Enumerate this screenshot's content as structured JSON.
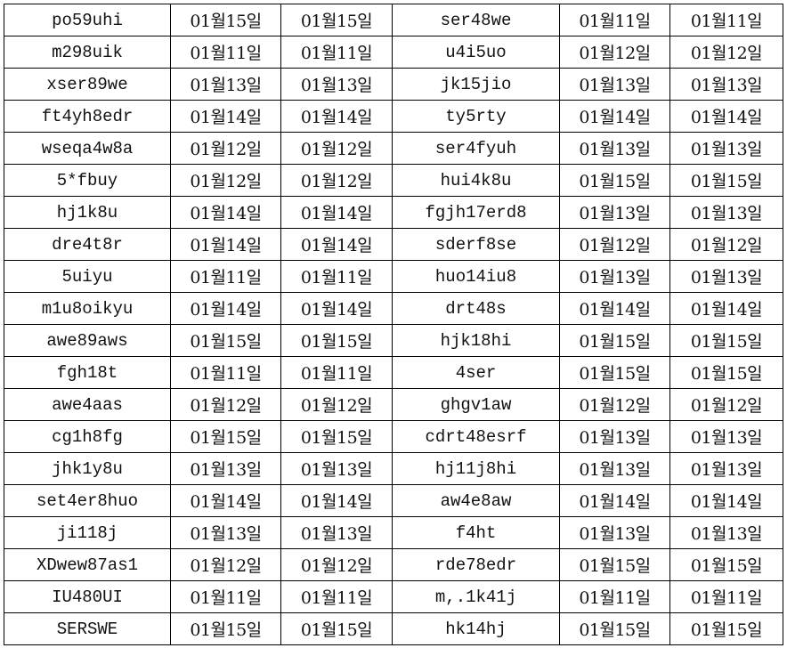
{
  "rows": [
    {
      "code1": "po59uhi",
      "d1": "01월15일",
      "d2": "01월15일",
      "code2": "ser48we",
      "d3": "01월11일",
      "d4": "01월11일"
    },
    {
      "code1": "m298uik",
      "d1": "01월11일",
      "d2": "01월11일",
      "code2": "u4i5uo",
      "d3": "01월12일",
      "d4": "01월12일"
    },
    {
      "code1": "xser89we",
      "d1": "01월13일",
      "d2": "01월13일",
      "code2": "jk15jio",
      "d3": "01월13일",
      "d4": "01월13일"
    },
    {
      "code1": "ft4yh8edr",
      "d1": "01월14일",
      "d2": "01월14일",
      "code2": "ty5rty",
      "d3": "01월14일",
      "d4": "01월14일"
    },
    {
      "code1": "wseqa4w8a",
      "d1": "01월12일",
      "d2": "01월12일",
      "code2": "ser4fyuh",
      "d3": "01월13일",
      "d4": "01월13일"
    },
    {
      "code1": "5*fbuy",
      "d1": "01월12일",
      "d2": "01월12일",
      "code2": "hui4k8u",
      "d3": "01월15일",
      "d4": "01월15일"
    },
    {
      "code1": "hj1k8u",
      "d1": "01월14일",
      "d2": "01월14일",
      "code2": "fgjh17erd8",
      "d3": "01월13일",
      "d4": "01월13일"
    },
    {
      "code1": "dre4t8r",
      "d1": "01월14일",
      "d2": "01월14일",
      "code2": "sderf8se",
      "d3": "01월12일",
      "d4": "01월12일"
    },
    {
      "code1": "5uiyu",
      "d1": "01월11일",
      "d2": "01월11일",
      "code2": "huo14iu8",
      "d3": "01월13일",
      "d4": "01월13일"
    },
    {
      "code1": "m1u8oikyu",
      "d1": "01월14일",
      "d2": "01월14일",
      "code2": "drt48s",
      "d3": "01월14일",
      "d4": "01월14일"
    },
    {
      "code1": "awe89aws",
      "d1": "01월15일",
      "d2": "01월15일",
      "code2": "hjk18hi",
      "d3": "01월15일",
      "d4": "01월15일"
    },
    {
      "code1": "fgh18t",
      "d1": "01월11일",
      "d2": "01월11일",
      "code2": "4ser",
      "d3": "01월15일",
      "d4": "01월15일"
    },
    {
      "code1": "awe4aas",
      "d1": "01월12일",
      "d2": "01월12일",
      "code2": "ghgv1aw",
      "d3": "01월12일",
      "d4": "01월12일"
    },
    {
      "code1": "cg1h8fg",
      "d1": "01월15일",
      "d2": "01월15일",
      "code2": "cdrt48esrf",
      "d3": "01월13일",
      "d4": "01월13일"
    },
    {
      "code1": "jhk1y8u",
      "d1": "01월13일",
      "d2": "01월13일",
      "code2": "hj11j8hi",
      "d3": "01월13일",
      "d4": "01월13일"
    },
    {
      "code1": "set4er8huo",
      "d1": "01월14일",
      "d2": "01월14일",
      "code2": "aw4e8aw",
      "d3": "01월14일",
      "d4": "01월14일"
    },
    {
      "code1": "ji118j",
      "d1": "01월13일",
      "d2": "01월13일",
      "code2": "f4ht",
      "d3": "01월13일",
      "d4": "01월13일"
    },
    {
      "code1": "XDwew87as1",
      "d1": "01월12일",
      "d2": "01월12일",
      "code2": "rde78edr",
      "d3": "01월15일",
      "d4": "01월15일"
    },
    {
      "code1": "IU480UI",
      "d1": "01월11일",
      "d2": "01월11일",
      "code2": "m,.1k41j",
      "d3": "01월11일",
      "d4": "01월11일"
    },
    {
      "code1": "SERSWE",
      "d1": "01월15일",
      "d2": "01월15일",
      "code2": "hk14hj",
      "d3": "01월15일",
      "d4": "01월15일"
    }
  ]
}
